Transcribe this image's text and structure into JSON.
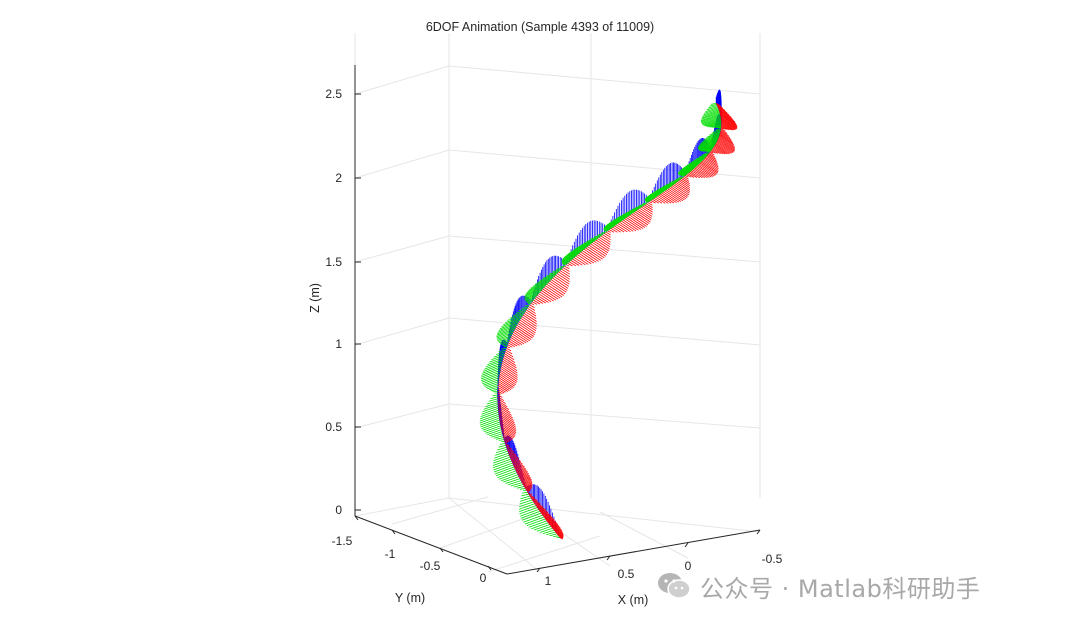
{
  "chart_data": {
    "type": "line",
    "title": "6DOF Animation (Sample 4393 of 11009)",
    "xlabel": "X (m)",
    "ylabel": "Y (m)",
    "zlabel": "Z (m)",
    "x_ticks": [
      "-0.5",
      "0",
      "0.5",
      "1"
    ],
    "y_ticks": [
      "-1.5",
      "-1",
      "-0.5",
      "0"
    ],
    "z_ticks": [
      "0",
      "0.5",
      "1",
      "1.5",
      "2",
      "2.5"
    ],
    "xlim": [
      -0.6,
      1.2
    ],
    "ylim": [
      -1.6,
      0.1
    ],
    "zlim": [
      -0.05,
      2.7
    ],
    "grid": true,
    "series": [
      {
        "color": "#0000ff"
      },
      {
        "color": "#00dd00"
      },
      {
        "color": "#ff0000"
      }
    ]
  },
  "watermark": {
    "text": "公众号 · Matlab科研助手",
    "logo_icon": "wechat-icon"
  }
}
